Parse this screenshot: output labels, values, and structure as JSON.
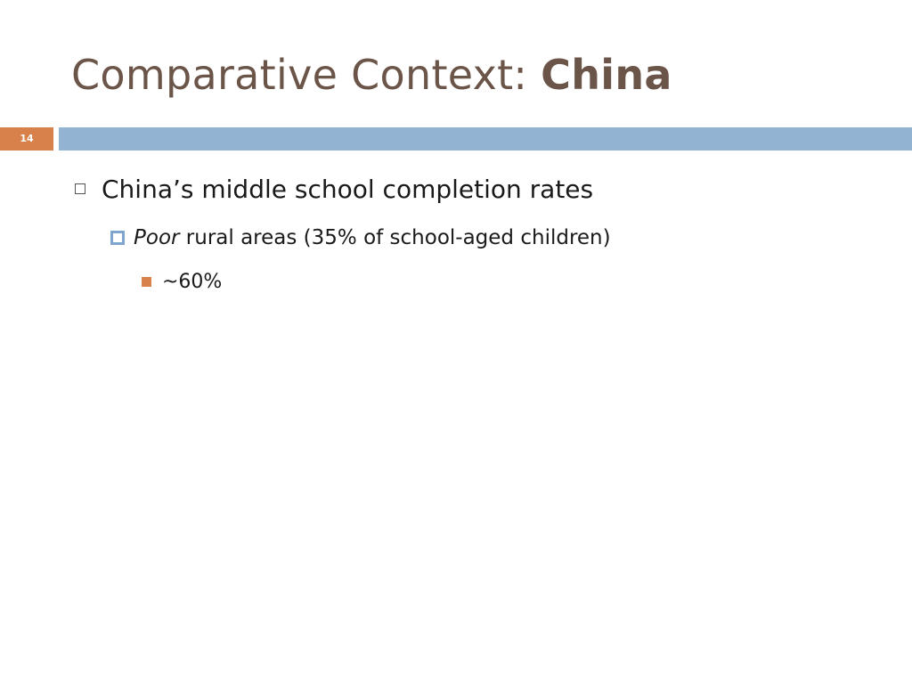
{
  "slide": {
    "title_regular": "Comparative Context: ",
    "title_bold": "China",
    "number": "14"
  },
  "colors": {
    "title": "#6b5448",
    "accent_orange": "#d9814a",
    "accent_blue": "#93b3d2"
  },
  "bullets": {
    "level1": {
      "text": "China’s middle school completion rates"
    },
    "level2": {
      "italic_text": "Poor",
      "text": " rural areas (35% of school-aged children)"
    },
    "level3": {
      "text": "~60%"
    }
  }
}
